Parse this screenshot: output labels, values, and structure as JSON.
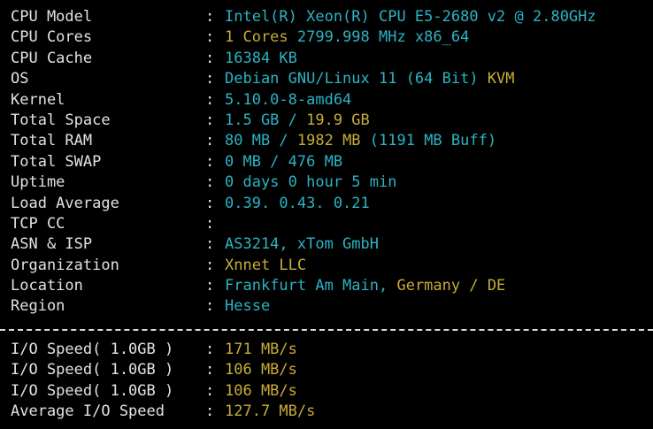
{
  "separator": ":",
  "sections": [
    {
      "rows": [
        {
          "label": "CPU Model",
          "value": [
            {
              "text": "Intel(R) Xeon(R) CPU E5-2680 v2 @ 2.80GHz",
              "color": "#2bb3c4"
            }
          ]
        },
        {
          "label": "CPU Cores",
          "value": [
            {
              "text": "1 Cores",
              "color": "#c8ad34"
            },
            {
              "text": " 2799.998 MHz x86_64",
              "color": "#2bb3c4"
            }
          ]
        },
        {
          "label": "CPU Cache",
          "value": [
            {
              "text": "16384 KB",
              "color": "#2bb3c4"
            }
          ]
        },
        {
          "label": "OS",
          "value": [
            {
              "text": "Debian GNU/Linux 11 (64 Bit)",
              "color": "#2bb3c4"
            },
            {
              "text": " KVM",
              "color": "#c8ad34"
            }
          ]
        },
        {
          "label": "Kernel",
          "value": [
            {
              "text": "5.10.0-8-amd64",
              "color": "#2bb3c4"
            }
          ]
        },
        {
          "label": "Total Space",
          "value": [
            {
              "text": "1.5 GB /",
              "color": "#2bb3c4"
            },
            {
              "text": " 19.9 GB",
              "color": "#c8ad34"
            }
          ]
        },
        {
          "label": "Total RAM",
          "value": [
            {
              "text": "80 MB /",
              "color": "#2bb3c4"
            },
            {
              "text": " 1982 MB",
              "color": "#c8ad34"
            },
            {
              "text": " (1191 MB Buff)",
              "color": "#2bb3c4"
            }
          ]
        },
        {
          "label": "Total SWAP",
          "value": [
            {
              "text": "0 MB / 476 MB",
              "color": "#2bb3c4"
            }
          ]
        },
        {
          "label": "Uptime",
          "value": [
            {
              "text": "0 days 0 hour 5 min",
              "color": "#2bb3c4"
            }
          ]
        },
        {
          "label": "Load Average",
          "value": [
            {
              "text": "0.39. 0.43. 0.21",
              "color": "#2bb3c4"
            }
          ]
        },
        {
          "label": "TCP CC",
          "value": []
        },
        {
          "label": "ASN & ISP",
          "value": [
            {
              "text": "AS3214, xTom GmbH",
              "color": "#2bb3c4"
            }
          ]
        },
        {
          "label": "Organization",
          "value": [
            {
              "text": "Xnnet LLC",
              "color": "#c8ad34"
            }
          ]
        },
        {
          "label": "Location",
          "value": [
            {
              "text": "Frankfurt Am Main,",
              "color": "#2bb3c4"
            },
            {
              "text": " Germany / DE",
              "color": "#c8ad34"
            }
          ]
        },
        {
          "label": "Region",
          "value": [
            {
              "text": "Hesse",
              "color": "#2bb3c4"
            }
          ]
        }
      ]
    },
    {
      "rows": [
        {
          "label": "I/O Speed( 1.0GB )",
          "value": [
            {
              "text": "171 MB/s",
              "color": "#c8ad34"
            }
          ]
        },
        {
          "label": "I/O Speed( 1.0GB )",
          "value": [
            {
              "text": "106 MB/s",
              "color": "#c8ad34"
            }
          ]
        },
        {
          "label": "I/O Speed( 1.0GB )",
          "value": [
            {
              "text": "106 MB/s",
              "color": "#c8ad34"
            }
          ]
        },
        {
          "label": "Average I/O Speed",
          "value": [
            {
              "text": "127.7 MB/s",
              "color": "#c8ad34"
            }
          ]
        }
      ]
    }
  ]
}
